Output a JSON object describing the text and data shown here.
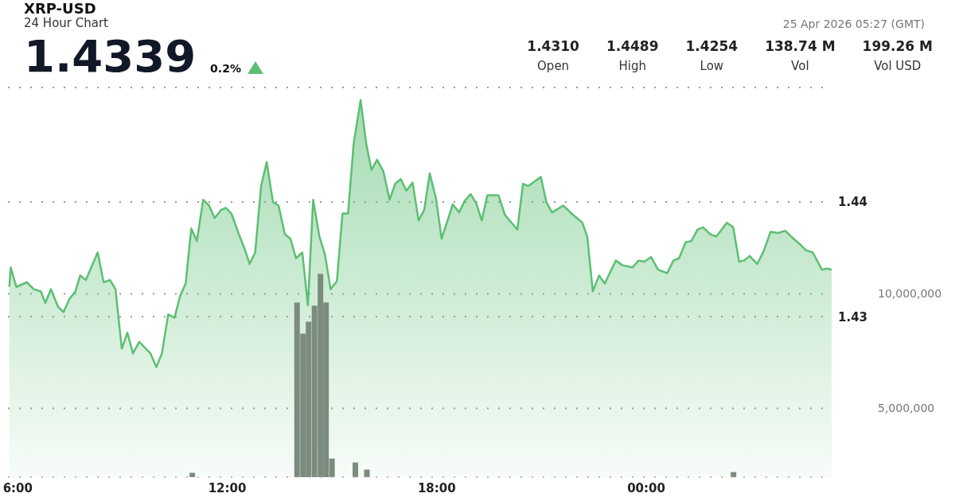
{
  "chart_data": {
    "type": "area",
    "title": "XRP-USD",
    "subtitle": "24 Hour Chart",
    "annotations": [
      "1.4339",
      "0.2%",
      "1.4310",
      "Open",
      "1.4489",
      "High",
      "1.4254",
      "Low",
      "138.74 M",
      "Vol",
      "199.26 M",
      "Vol USD",
      "25 Apr 2026 05:27 (GMT)"
    ],
    "xlim": [
      5.72,
      29.31
    ],
    "xticks": [
      {
        "value": 6,
        "label": "6:00"
      },
      {
        "value": 12,
        "label": "12:00"
      },
      {
        "value": 18,
        "label": "18:00"
      },
      {
        "value": 24,
        "label": "00:00"
      }
    ],
    "ylim": [
      1.416,
      1.45
    ],
    "yticks": [
      1.43,
      1.44
    ],
    "y2lim": [
      2000000,
      19000000
    ],
    "y2ticks": [
      {
        "value": 5000000,
        "label": "5,000,000"
      },
      {
        "value": 10000000,
        "label": "10,000,000"
      }
    ],
    "grid": "y",
    "series": [
      {
        "color": "#5cbf73",
        "x": [
          5.76,
          5.8,
          5.96,
          6.26,
          6.46,
          6.66,
          6.79,
          6.95,
          7.15,
          7.31,
          7.49,
          7.65,
          7.79,
          7.95,
          8.29,
          8.46,
          8.64,
          8.8,
          8.98,
          9.14,
          9.3,
          9.48,
          9.8,
          9.97,
          10.13,
          10.31,
          10.49,
          10.65,
          10.81,
          10.97,
          11.13,
          11.31,
          11.48,
          11.64,
          11.82,
          11.96,
          12.12,
          12.32,
          12.5,
          12.64,
          12.8,
          12.97,
          13.13,
          13.31,
          13.47,
          13.65,
          13.81,
          13.97,
          14.15,
          14.31,
          14.46,
          14.64,
          14.8,
          14.96,
          15.14,
          15.3,
          15.46,
          15.62,
          15.82,
          15.98,
          16.13,
          16.29,
          16.47,
          16.65,
          16.81,
          16.97,
          17.13,
          17.31,
          17.48,
          17.64,
          17.8,
          17.98,
          18.14,
          18.3,
          18.46,
          18.64,
          18.8,
          18.97,
          19.13,
          19.29,
          19.45,
          19.77,
          19.95,
          20.31,
          20.47,
          20.62,
          20.98,
          21.14,
          21.3,
          21.62,
          21.9,
          22.17,
          22.31,
          22.47,
          22.65,
          22.81,
          23.13,
          23.31,
          23.61,
          23.78,
          23.94,
          24.14,
          24.34,
          24.6,
          24.78,
          24.94,
          25.13,
          25.29,
          25.47,
          25.63,
          25.83,
          26.01,
          26.31,
          26.49,
          26.66,
          26.8,
          26.96,
          27.18,
          27.36,
          27.56,
          27.78,
          27.98,
          28.22,
          28.41,
          28.57,
          28.77,
          29.03,
          29.17,
          29.31
        ],
        "values": [
          1.4326,
          1.4343,
          1.4326,
          1.433,
          1.4324,
          1.4322,
          1.4312,
          1.4324,
          1.4309,
          1.4304,
          1.4316,
          1.4322,
          1.4336,
          1.4332,
          1.4356,
          1.433,
          1.4332,
          1.4324,
          1.4272,
          1.4286,
          1.4268,
          1.4278,
          1.4268,
          1.4256,
          1.4268,
          1.4302,
          1.4299,
          1.4318,
          1.4329,
          1.4377,
          1.4366,
          1.4402,
          1.4397,
          1.4386,
          1.4393,
          1.4395,
          1.439,
          1.4373,
          1.4359,
          1.4346,
          1.4356,
          1.4414,
          1.4435,
          1.44,
          1.4397,
          1.4372,
          1.4368,
          1.4351,
          1.4356,
          1.431,
          1.4402,
          1.437,
          1.4354,
          1.4324,
          1.4331,
          1.439,
          1.439,
          1.4451,
          1.4489,
          1.4451,
          1.4428,
          1.4437,
          1.4427,
          1.4402,
          1.4416,
          1.442,
          1.441,
          1.4417,
          1.4384,
          1.4393,
          1.4425,
          1.4403,
          1.4368,
          1.4383,
          1.4398,
          1.4391,
          1.4401,
          1.4407,
          1.4399,
          1.4384,
          1.4406,
          1.4406,
          1.4389,
          1.4376,
          1.4416,
          1.4414,
          1.4422,
          1.44,
          1.4391,
          1.4397,
          1.4389,
          1.4382,
          1.437,
          1.4322,
          1.4336,
          1.4329,
          1.4349,
          1.4345,
          1.4343,
          1.4349,
          1.4348,
          1.4352,
          1.4341,
          1.4338,
          1.4349,
          1.4351,
          1.4365,
          1.4366,
          1.4376,
          1.4378,
          1.4372,
          1.437,
          1.4382,
          1.4378,
          1.4348,
          1.4349,
          1.4353,
          1.4346,
          1.4357,
          1.4374,
          1.4373,
          1.4375,
          1.4368,
          1.4363,
          1.4358,
          1.4356,
          1.4341,
          1.4342,
          1.4341
        ]
      },
      {
        "type": "bar",
        "axis": "y2",
        "color": "#7b8b7e",
        "x": [
          11.0,
          14.0,
          14.17,
          14.33,
          14.5,
          14.67,
          14.83,
          15.0,
          15.67,
          16.0,
          26.5
        ],
        "values": [
          2190000,
          9620000,
          8260000,
          8780000,
          9480000,
          10870000,
          9620000,
          2810000,
          2640000,
          2330000,
          2220000
        ]
      }
    ]
  }
}
